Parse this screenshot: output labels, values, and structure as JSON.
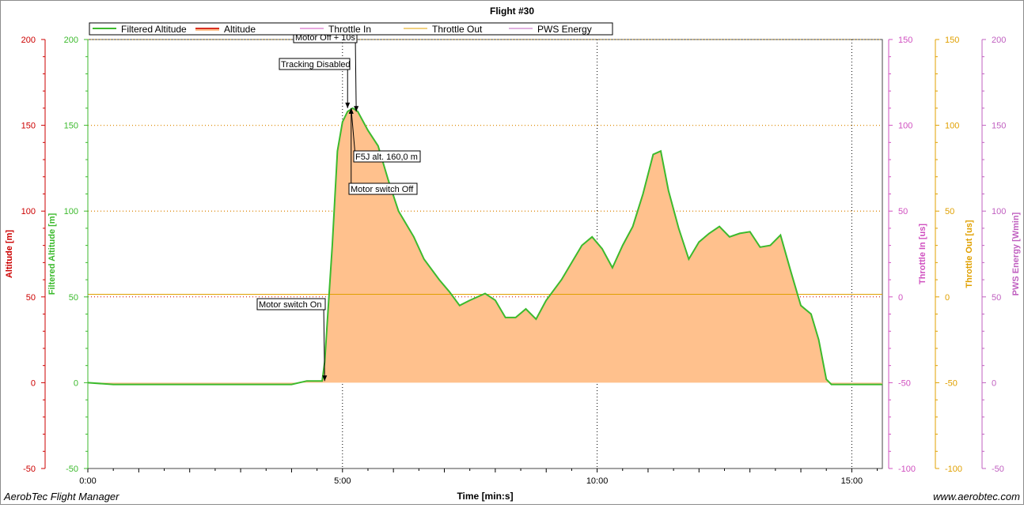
{
  "app": {
    "name": "AerobTec Flight Manager",
    "website": "www.aerobtec.com"
  },
  "colors": {
    "filtered_altitude": "#3cba2d",
    "altitude": "#cc0000",
    "altitude_fill": "#ffc18d",
    "throttle_in": "#d050c0",
    "throttle_out": "#e0a000",
    "pws_energy": "#c060c0"
  },
  "chart_data": {
    "type": "area",
    "title": "Flight #30",
    "xlabel": "Time [min:s]",
    "x_ticks": [
      "0:00",
      "5:00",
      "10:00",
      "15:00"
    ],
    "xlim_min": [
      0,
      15.6
    ],
    "grid": true,
    "legend_placement": "top-left",
    "legend": [
      "Filtered Altitude",
      "Altitude",
      "Throttle In",
      "Throttle Out",
      "PWS Energy"
    ],
    "axes": [
      {
        "label": "Altitude [m]",
        "color": "#cc0000",
        "side": "left",
        "min": -50,
        "max": 200,
        "ticks": [
          "-50",
          "0",
          "50",
          "100",
          "150",
          "200"
        ]
      },
      {
        "label": "Filtered Altitude [m]",
        "color": "#3cba2d",
        "side": "left",
        "min": -50,
        "max": 200,
        "ticks": [
          "-50",
          "0",
          "50",
          "100",
          "150",
          "200"
        ]
      },
      {
        "label": "Throttle In [us]",
        "color": "#d050c0",
        "side": "right",
        "min": -100,
        "max": 150,
        "ticks": [
          "-100",
          "-50",
          "0",
          "50",
          "100",
          "150"
        ]
      },
      {
        "label": "Throttle Out [us]",
        "color": "#e0a000",
        "side": "right",
        "min": -100,
        "max": 150,
        "ticks": [
          "-100",
          "-50",
          "0",
          "50",
          "100",
          "150"
        ]
      },
      {
        "label": "PWS Energy [Wmin]",
        "color": "#c060c0",
        "side": "right",
        "min": -50,
        "max": 200,
        "ticks": [
          "-50",
          "0",
          "50",
          "100",
          "150",
          "200"
        ]
      }
    ],
    "series": [
      {
        "name": "Filtered Altitude",
        "x": [
          0,
          0.5,
          1,
          2,
          3,
          4,
          4.3,
          4.6,
          4.65,
          4.8,
          4.9,
          5.0,
          5.1,
          5.2,
          5.3,
          5.5,
          5.7,
          5.9,
          6.1,
          6.4,
          6.6,
          6.9,
          7.1,
          7.3,
          7.5,
          7.8,
          8.0,
          8.2,
          8.4,
          8.6,
          8.8,
          9.0,
          9.3,
          9.5,
          9.7,
          9.9,
          10.1,
          10.3,
          10.5,
          10.7,
          10.9,
          11.1,
          11.25,
          11.4,
          11.6,
          11.8,
          12.0,
          12.2,
          12.4,
          12.6,
          12.8,
          13.0,
          13.2,
          13.4,
          13.6,
          13.8,
          14.0,
          14.2,
          14.35,
          14.5,
          14.6,
          15.0,
          15.6
        ],
        "values": [
          0,
          -1,
          -1,
          -1,
          -1,
          -1,
          1,
          1,
          12,
          80,
          135,
          152,
          158,
          160,
          158,
          147,
          138,
          118,
          100,
          85,
          72,
          60,
          53,
          45,
          48,
          52,
          48,
          38,
          38,
          43,
          37,
          48,
          60,
          70,
          80,
          85,
          78,
          67,
          80,
          91,
          110,
          133,
          135,
          112,
          90,
          72,
          82,
          87,
          91,
          85,
          87,
          88,
          79,
          80,
          86,
          65,
          45,
          40,
          25,
          2,
          -1,
          -1,
          -1
        ]
      },
      {
        "name": "Altitude",
        "x": [
          0,
          0.5,
          1,
          2,
          3,
          4,
          4.3,
          4.6,
          4.65,
          4.8,
          4.9,
          5.0,
          5.1,
          5.2,
          5.3,
          5.5,
          5.7,
          5.9,
          6.1,
          6.4,
          6.6,
          6.9,
          7.1,
          7.3,
          7.5,
          7.8,
          8.0,
          8.2,
          8.4,
          8.6,
          8.8,
          9.0,
          9.3,
          9.5,
          9.7,
          9.9,
          10.1,
          10.3,
          10.5,
          10.7,
          10.9,
          11.1,
          11.25,
          11.4,
          11.6,
          11.8,
          12.0,
          12.2,
          12.4,
          12.6,
          12.8,
          13.0,
          13.2,
          13.4,
          13.6,
          13.8,
          14.0,
          14.2,
          14.35,
          14.5,
          14.6,
          15.0,
          15.6
        ],
        "values": [
          0,
          -1,
          -1,
          -1,
          -1,
          -1,
          1,
          1,
          12,
          80,
          135,
          152,
          158,
          160,
          158,
          147,
          138,
          118,
          100,
          85,
          72,
          60,
          53,
          45,
          48,
          52,
          48,
          38,
          38,
          43,
          37,
          48,
          60,
          70,
          80,
          85,
          78,
          67,
          80,
          91,
          110,
          133,
          135,
          112,
          90,
          72,
          82,
          87,
          91,
          85,
          87,
          88,
          79,
          80,
          86,
          65,
          45,
          40,
          25,
          2,
          -1,
          -1,
          -1
        ]
      },
      {
        "name": "Throttle Out",
        "x": [
          0,
          15.6
        ],
        "values": [
          1.5,
          1.5
        ]
      }
    ],
    "annotations": [
      {
        "text": "Motor Off + 10s",
        "x": 5.27,
        "y": 158
      },
      {
        "text": "Tracking Disabled",
        "x": 5.1,
        "y": 160
      },
      {
        "text": "F5J alt. 160,0 m",
        "x": 5.17,
        "y": 160
      },
      {
        "text": "Motor switch Off",
        "x": 5.17,
        "y": 160
      },
      {
        "text": "Motor switch On",
        "x": 4.65,
        "y": 1
      }
    ]
  }
}
